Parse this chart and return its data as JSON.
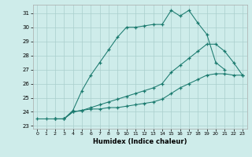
{
  "xlabel": "Humidex (Indice chaleur)",
  "background_color": "#ceecea",
  "grid_color": "#aacfcc",
  "line_color": "#1a7a6e",
  "xlim": [
    -0.5,
    23.5
  ],
  "ylim": [
    22.8,
    31.6
  ],
  "yticks": [
    23,
    24,
    25,
    26,
    27,
    28,
    29,
    30,
    31
  ],
  "xticks": [
    0,
    1,
    2,
    3,
    4,
    5,
    6,
    7,
    8,
    9,
    10,
    11,
    12,
    13,
    14,
    15,
    16,
    17,
    18,
    19,
    20,
    21,
    22,
    23
  ],
  "curve1_x": [
    0,
    1,
    2,
    3,
    4,
    5,
    6,
    7,
    8,
    9,
    10,
    11,
    12,
    13,
    14,
    15,
    16,
    17,
    18,
    19,
    20,
    21
  ],
  "curve1_y": [
    23.5,
    23.5,
    23.5,
    23.5,
    24.1,
    25.5,
    26.6,
    27.5,
    28.4,
    29.3,
    30.0,
    30.0,
    30.1,
    30.2,
    30.2,
    31.2,
    30.8,
    31.2,
    30.3,
    29.5,
    27.5,
    27.0
  ],
  "curve2_x": [
    2,
    3,
    4,
    5,
    6,
    7,
    8,
    9,
    10,
    11,
    12,
    13,
    14,
    15,
    16,
    17,
    18,
    19,
    20,
    21,
    22,
    23
  ],
  "curve2_y": [
    23.5,
    23.5,
    24.0,
    24.1,
    24.3,
    24.5,
    24.7,
    24.9,
    25.1,
    25.3,
    25.5,
    25.7,
    26.0,
    26.8,
    27.3,
    27.8,
    28.3,
    28.8,
    28.8,
    28.3,
    27.5,
    26.6
  ],
  "curve3_x": [
    2,
    3,
    4,
    5,
    6,
    7,
    8,
    9,
    10,
    11,
    12,
    13,
    14,
    15,
    16,
    17,
    18,
    19,
    20,
    21,
    22,
    23
  ],
  "curve3_y": [
    23.5,
    23.5,
    24.0,
    24.1,
    24.2,
    24.2,
    24.3,
    24.3,
    24.4,
    24.5,
    24.6,
    24.7,
    24.9,
    25.3,
    25.7,
    26.0,
    26.3,
    26.6,
    26.7,
    26.7,
    26.6,
    26.6
  ]
}
